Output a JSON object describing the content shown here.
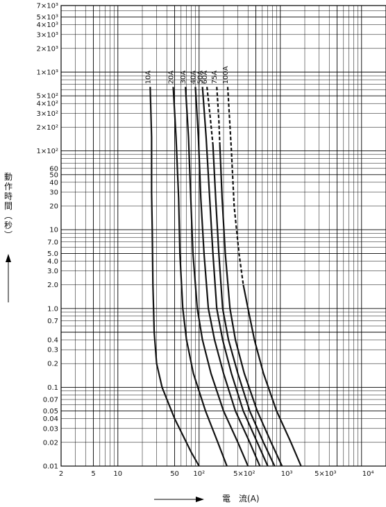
{
  "chart_data": {
    "type": "line",
    "xscale": "log",
    "yscale": "log",
    "xlim": [
      2,
      20000
    ],
    "ylim": [
      0.01,
      7000
    ],
    "grid": true,
    "xlabel": "電　流(A)",
    "ylabel": "動作時間(秒)",
    "x_ticks": [
      {
        "value": 2,
        "label": "2"
      },
      {
        "value": 5,
        "label": "5"
      },
      {
        "value": 10,
        "label": "10"
      },
      {
        "value": 50,
        "label": "50"
      },
      {
        "value": 100,
        "label": "10²"
      },
      {
        "value": 500,
        "label": "5×10²"
      },
      {
        "value": 1000,
        "label": "10³"
      },
      {
        "value": 5000,
        "label": "5×10³"
      },
      {
        "value": 10000,
        "label": "10⁴"
      }
    ],
    "y_ticks": [
      {
        "value": 7000,
        "label": "7×10³"
      },
      {
        "value": 5000,
        "label": "5×10³"
      },
      {
        "value": 4000,
        "label": "4×10³"
      },
      {
        "value": 3000,
        "label": "3×10³"
      },
      {
        "value": 2000,
        "label": "2×10³"
      },
      {
        "value": 1000,
        "label": "1×10³"
      },
      {
        "value": 500,
        "label": "5×10²"
      },
      {
        "value": 400,
        "label": "4×10²"
      },
      {
        "value": 300,
        "label": "3×10²"
      },
      {
        "value": 200,
        "label": "2×10²"
      },
      {
        "value": 100,
        "label": "1×10²"
      },
      {
        "value": 60,
        "label": "60"
      },
      {
        "value": 50,
        "label": "50"
      },
      {
        "value": 40,
        "label": "40"
      },
      {
        "value": 30,
        "label": "30"
      },
      {
        "value": 20,
        "label": "20"
      },
      {
        "value": 10,
        "label": "10"
      },
      {
        "value": 7,
        "label": "7.0"
      },
      {
        "value": 5,
        "label": "5.0"
      },
      {
        "value": 4,
        "label": "4.0"
      },
      {
        "value": 3,
        "label": "3.0"
      },
      {
        "value": 2,
        "label": "2.0"
      },
      {
        "value": 1,
        "label": "1.0"
      },
      {
        "value": 0.7,
        "label": "0.7"
      },
      {
        "value": 0.4,
        "label": "0.4"
      },
      {
        "value": 0.3,
        "label": "0.3"
      },
      {
        "value": 0.2,
        "label": "0.2"
      },
      {
        "value": 0.1,
        "label": "0.1"
      },
      {
        "value": 0.07,
        "label": "0.07"
      },
      {
        "value": 0.05,
        "label": "0.05"
      },
      {
        "value": 0.04,
        "label": "0.04"
      },
      {
        "value": 0.03,
        "label": "0.03"
      },
      {
        "value": 0.02,
        "label": "0.02"
      },
      {
        "value": 0.01,
        "label": "0.01"
      }
    ],
    "series": [
      {
        "name": "10A",
        "dashed_points": [],
        "points": [
          [
            25,
            650
          ],
          [
            26,
            150
          ],
          [
            26,
            30
          ],
          [
            26.5,
            10
          ],
          [
            27,
            2
          ],
          [
            28,
            0.5
          ],
          [
            30,
            0.2
          ],
          [
            35,
            0.1
          ],
          [
            50,
            0.04
          ],
          [
            80,
            0.015
          ],
          [
            100,
            0.01
          ]
        ]
      },
      {
        "name": "20A",
        "dashed_points": [],
        "points": [
          [
            48,
            650
          ],
          [
            52,
            150
          ],
          [
            56,
            25
          ],
          [
            58,
            5
          ],
          [
            63,
            1
          ],
          [
            70,
            0.4
          ],
          [
            85,
            0.15
          ],
          [
            120,
            0.05
          ],
          [
            170,
            0.02
          ],
          [
            220,
            0.01
          ]
        ]
      },
      {
        "name": "30A",
        "dashed_points": [],
        "points": [
          [
            68,
            650
          ],
          [
            74,
            150
          ],
          [
            79,
            25
          ],
          [
            84,
            5
          ],
          [
            95,
            1
          ],
          [
            110,
            0.4
          ],
          [
            140,
            0.15
          ],
          [
            200,
            0.05
          ],
          [
            300,
            0.02
          ],
          [
            400,
            0.01
          ]
        ]
      },
      {
        "name": "40A",
        "dashed_points": [],
        "points": [
          [
            90,
            650
          ],
          [
            98,
            150
          ],
          [
            105,
            25
          ],
          [
            115,
            5
          ],
          [
            130,
            1
          ],
          [
            155,
            0.4
          ],
          [
            200,
            0.15
          ],
          [
            280,
            0.05
          ],
          [
            420,
            0.02
          ],
          [
            560,
            0.01
          ]
        ]
      },
      {
        "name": "50A",
        "dashed_points": [],
        "points": [
          [
            110,
            650
          ],
          [
            122,
            150
          ],
          [
            135,
            25
          ],
          [
            148,
            5
          ],
          [
            165,
            1
          ],
          [
            195,
            0.4
          ],
          [
            250,
            0.15
          ],
          [
            350,
            0.05
          ],
          [
            520,
            0.02
          ],
          [
            700,
            0.01
          ]
        ]
      },
      {
        "name": "60A",
        "dashed_points": [
          [
            125,
            650
          ],
          [
            138,
            250
          ],
          [
            148,
            120
          ]
        ],
        "points": [
          [
            148,
            120
          ],
          [
            160,
            25
          ],
          [
            175,
            5
          ],
          [
            195,
            1
          ],
          [
            230,
            0.4
          ],
          [
            300,
            0.15
          ],
          [
            420,
            0.05
          ],
          [
            620,
            0.02
          ],
          [
            850,
            0.01
          ]
        ]
      },
      {
        "name": "75A",
        "dashed_points": [
          [
            165,
            650
          ],
          [
            175,
            250
          ],
          [
            180,
            120
          ]
        ],
        "points": [
          [
            180,
            120
          ],
          [
            192,
            25
          ],
          [
            210,
            5
          ],
          [
            240,
            1
          ],
          [
            280,
            0.4
          ],
          [
            360,
            0.15
          ],
          [
            520,
            0.05
          ],
          [
            770,
            0.02
          ],
          [
            1050,
            0.01
          ]
        ]
      },
      {
        "name": "100A",
        "dashed_points": [
          [
            225,
            650
          ],
          [
            250,
            100
          ],
          [
            270,
            20
          ],
          [
            310,
            5
          ],
          [
            350,
            2
          ]
        ],
        "points": [
          [
            350,
            2
          ],
          [
            400,
            1
          ],
          [
            480,
            0.4
          ],
          [
            620,
            0.15
          ],
          [
            900,
            0.05
          ],
          [
            1350,
            0.02
          ],
          [
            1800,
            0.01
          ]
        ]
      }
    ]
  }
}
